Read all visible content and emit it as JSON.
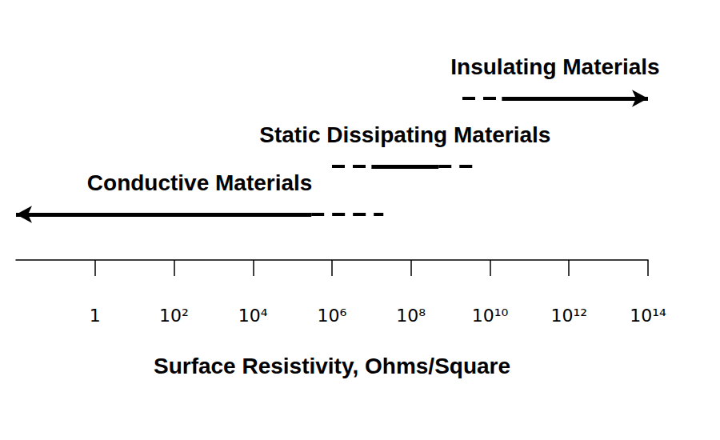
{
  "chart_data": {
    "type": "range",
    "xlabel": "Surface Resistivity, Ohms/Square",
    "log": "x",
    "grid": false,
    "xlim": [
      0.01,
      100000000000000.0
    ],
    "xticks": [
      1,
      {
        "value": 100,
        "label": "10²"
      },
      {
        "value": 10000,
        "label": "10⁴"
      },
      {
        "value": 1000000,
        "label": "10⁶"
      },
      {
        "value": 100000000,
        "label": "10⁸"
      },
      {
        "value": 10000000000,
        "label": "10¹⁰"
      },
      {
        "value": 1000000000000,
        "label": "10¹²"
      },
      {
        "value": 100000000000000,
        "label": "10¹⁴"
      }
    ],
    "series": [
      {
        "name": "Conductive Materials",
        "color": "#000000",
        "solid": [
          0.01,
          300000.0
        ],
        "dashed": [
          [
            300000.0,
            20000000.0
          ]
        ]
      },
      {
        "name": "Static Dissipating Materials",
        "color": "#000000",
        "solid": [
          10000000.0,
          500000000.0
        ],
        "dashed": [
          [
            1000000.0,
            10000000.0
          ],
          [
            500000000.0,
            5000000000.0
          ]
        ]
      },
      {
        "name": "Insulating Materials",
        "color": "#000000",
        "solid": [
          20000000000.0,
          100000000000000.0
        ],
        "dashed": [
          [
            2000000000.0,
            20000000000.0
          ]
        ]
      }
    ]
  }
}
